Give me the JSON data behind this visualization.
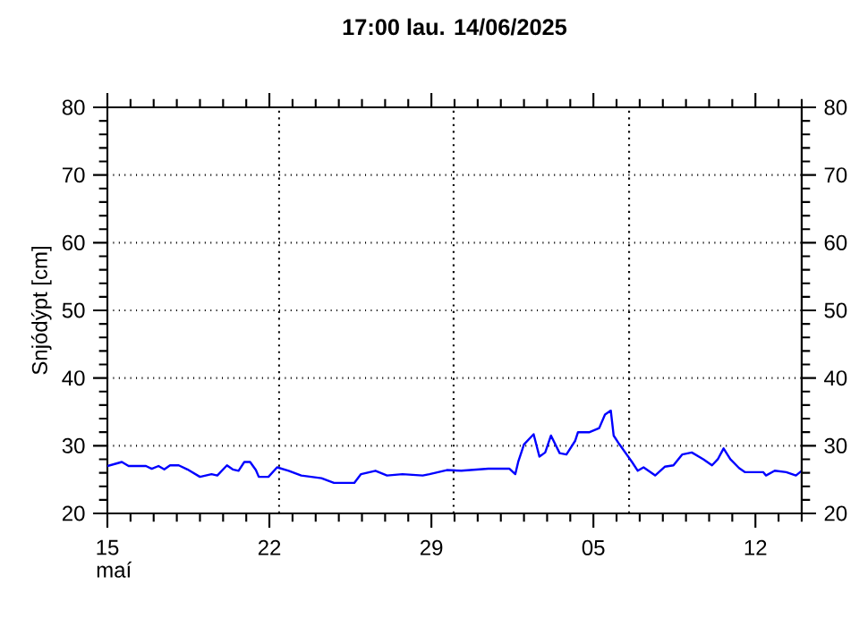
{
  "chart_data": {
    "type": "line",
    "title": "17:00 lau. 14/06/2025",
    "ylabel": "Snjódýpt [cm]",
    "xlabel": "maí",
    "x": [
      "2025-05-15T00:00",
      "2025-05-15T15:00",
      "2025-05-15T22:00",
      "2025-05-16T16:00",
      "2025-05-16T22:00",
      "2025-05-17T05:00",
      "2025-05-17T11:00",
      "2025-05-17T17:00",
      "2025-05-18T02:00",
      "2025-05-18T11:00",
      "2025-05-19T00:00",
      "2025-05-19T12:00",
      "2025-05-19T18:00",
      "2025-05-20T04:00",
      "2025-05-20T10:00",
      "2025-05-20T16:00",
      "2025-05-20T22:00",
      "2025-05-21T04:00",
      "2025-05-21T10:00",
      "2025-05-21T13:00",
      "2025-05-21T23:00",
      "2025-05-22T08:00",
      "2025-05-22T20:00",
      "2025-05-23T09:00",
      "2025-05-24T06:00",
      "2025-05-24T19:00",
      "2025-05-25T16:00",
      "2025-05-25T23:00",
      "2025-05-26T14:00",
      "2025-05-27T02:00",
      "2025-05-27T18:00",
      "2025-05-28T15:00",
      "2025-05-28T22:00",
      "2025-05-29T16:00",
      "2025-05-30T07:00",
      "2025-05-31T11:00",
      "2025-06-01T09:00",
      "2025-06-01T15:00",
      "2025-06-01T18:00",
      "2025-06-02T00:00",
      "2025-06-02T10:00",
      "2025-06-02T16:00",
      "2025-06-02T22:00",
      "2025-06-03T04:00",
      "2025-06-03T13:00",
      "2025-06-03T20:00",
      "2025-06-04T05:00",
      "2025-06-04T08:00",
      "2025-06-04T20:00",
      "2025-06-05T06:00",
      "2025-06-05T12:00",
      "2025-06-05T18:00",
      "2025-06-05T21:00",
      "2025-06-06T03:00",
      "2025-06-06T16:00",
      "2025-06-06T22:00",
      "2025-06-07T04:00",
      "2025-06-07T16:00",
      "2025-06-08T02:00",
      "2025-06-08T11:00",
      "2025-06-08T20:00",
      "2025-06-09T06:00",
      "2025-06-09T18:00",
      "2025-06-10T03:00",
      "2025-06-10T09:00",
      "2025-06-10T15:00",
      "2025-06-10T22:00",
      "2025-06-11T07:00",
      "2025-06-11T13:00",
      "2025-06-12T08:00",
      "2025-06-12T11:00",
      "2025-06-12T20:00",
      "2025-06-13T08:00",
      "2025-06-13T18:00",
      "2025-06-14T00:00"
    ],
    "series": [
      {
        "color": "#0000ff",
        "values": [
          27.0,
          27.6,
          27.0,
          27.0,
          26.6,
          27.0,
          26.5,
          27.1,
          27.1,
          26.5,
          25.4,
          25.8,
          25.6,
          27.1,
          26.5,
          26.3,
          27.6,
          27.6,
          26.4,
          25.4,
          25.4,
          26.8,
          26.3,
          25.6,
          25.2,
          24.5,
          24.5,
          25.8,
          26.3,
          25.6,
          25.8,
          25.6,
          25.8,
          26.4,
          26.3,
          26.6,
          26.6,
          25.8,
          27.6,
          30.2,
          31.7,
          28.4,
          29.0,
          31.5,
          28.9,
          28.7,
          30.7,
          32.0,
          32.0,
          32.6,
          34.6,
          35.2,
          31.5,
          30.2,
          27.6,
          26.3,
          26.8,
          25.6,
          26.9,
          27.1,
          28.7,
          29.0,
          28.0,
          27.1,
          28.0,
          29.6,
          28.0,
          26.7,
          26.1,
          26.1,
          25.6,
          26.3,
          26.1,
          25.6,
          26.3
        ]
      }
    ],
    "xlim": [
      "2025-05-15",
      "2025-06-14"
    ],
    "xticks": [
      {
        "value": "2025-05-15",
        "label": "15"
      },
      {
        "value": "2025-05-16",
        "label": null
      },
      {
        "value": "2025-05-17",
        "label": null
      },
      {
        "value": "2025-05-18",
        "label": null
      },
      {
        "value": "2025-05-19",
        "label": null
      },
      {
        "value": "2025-05-20",
        "label": null
      },
      {
        "value": "2025-05-21",
        "label": null
      },
      {
        "value": "2025-05-22",
        "label": "22"
      },
      {
        "value": "2025-05-23",
        "label": null
      },
      {
        "value": "2025-05-24",
        "label": null
      },
      {
        "value": "2025-05-25",
        "label": null
      },
      {
        "value": "2025-05-26",
        "label": null
      },
      {
        "value": "2025-05-27",
        "label": null
      },
      {
        "value": "2025-05-28",
        "label": null
      },
      {
        "value": "2025-05-29",
        "label": "29"
      },
      {
        "value": "2025-05-30",
        "label": null
      },
      {
        "value": "2025-05-31",
        "label": null
      },
      {
        "value": "2025-06-01",
        "label": null
      },
      {
        "value": "2025-06-02",
        "label": null
      },
      {
        "value": "2025-06-03",
        "label": null
      },
      {
        "value": "2025-06-04",
        "label": null
      },
      {
        "value": "2025-06-05",
        "label": "05"
      },
      {
        "value": "2025-06-06",
        "label": null
      },
      {
        "value": "2025-06-07",
        "label": null
      },
      {
        "value": "2025-06-08",
        "label": null
      },
      {
        "value": "2025-06-09",
        "label": null
      },
      {
        "value": "2025-06-10",
        "label": null
      },
      {
        "value": "2025-06-11",
        "label": null
      },
      {
        "value": "2025-06-12",
        "label": "12"
      },
      {
        "value": "2025-06-13",
        "label": null
      },
      {
        "value": "2025-06-14",
        "label": null
      }
    ],
    "ylim": [
      20,
      80
    ],
    "yticks": [
      20,
      {
        "value": 22,
        "label": null
      },
      {
        "value": 24,
        "label": null
      },
      {
        "value": 26,
        "label": null
      },
      {
        "value": 28,
        "label": null
      },
      30,
      {
        "value": 32,
        "label": null
      },
      {
        "value": 34,
        "label": null
      },
      {
        "value": 36,
        "label": null
      },
      {
        "value": 38,
        "label": null
      },
      40,
      {
        "value": 42,
        "label": null
      },
      {
        "value": 44,
        "label": null
      },
      {
        "value": 46,
        "label": null
      },
      {
        "value": 48,
        "label": null
      },
      50,
      {
        "value": 52,
        "label": null
      },
      {
        "value": 54,
        "label": null
      },
      {
        "value": 56,
        "label": null
      },
      {
        "value": 58,
        "label": null
      },
      60,
      {
        "value": 62,
        "label": null
      },
      {
        "value": 64,
        "label": null
      },
      {
        "value": 66,
        "label": null
      },
      {
        "value": 68,
        "label": null
      },
      70,
      {
        "value": 72,
        "label": null
      },
      {
        "value": 74,
        "label": null
      },
      {
        "value": 76,
        "label": null
      },
      {
        "value": 78,
        "label": null
      },
      80
    ],
    "y2lim": [
      20,
      80
    ],
    "y2ticks": [
      20,
      {
        "value": 22,
        "label": null
      },
      {
        "value": 24,
        "label": null
      },
      {
        "value": 26,
        "label": null
      },
      {
        "value": 28,
        "label": null
      },
      30,
      {
        "value": 32,
        "label": null
      },
      {
        "value": 34,
        "label": null
      },
      {
        "value": 36,
        "label": null
      },
      {
        "value": 38,
        "label": null
      },
      40,
      {
        "value": 42,
        "label": null
      },
      {
        "value": 44,
        "label": null
      },
      {
        "value": 46,
        "label": null
      },
      {
        "value": 48,
        "label": null
      },
      50,
      {
        "value": 52,
        "label": null
      },
      {
        "value": 54,
        "label": null
      },
      {
        "value": 56,
        "label": null
      },
      {
        "value": 58,
        "label": null
      },
      60,
      {
        "value": 62,
        "label": null
      },
      {
        "value": 64,
        "label": null
      },
      {
        "value": 66,
        "label": null
      },
      {
        "value": 68,
        "label": null
      },
      70,
      {
        "value": 72,
        "label": null
      },
      {
        "value": 74,
        "label": null
      },
      {
        "value": 76,
        "label": null
      },
      {
        "value": 78,
        "label": null
      },
      80
    ],
    "ref_lines": [
      {
        "axis": "x",
        "value": "2025-05-22T10:00",
        "color": "#000000",
        "line_style": "dotted"
      },
      {
        "axis": "x",
        "value": "2025-05-29T23:00",
        "color": "#000000",
        "line_style": "dotted"
      },
      {
        "axis": "x",
        "value": "2025-06-06T13:00",
        "color": "#000000",
        "line_style": "dotted"
      }
    ],
    "grid": "y",
    "marker": "none",
    "line_style": "solid"
  }
}
